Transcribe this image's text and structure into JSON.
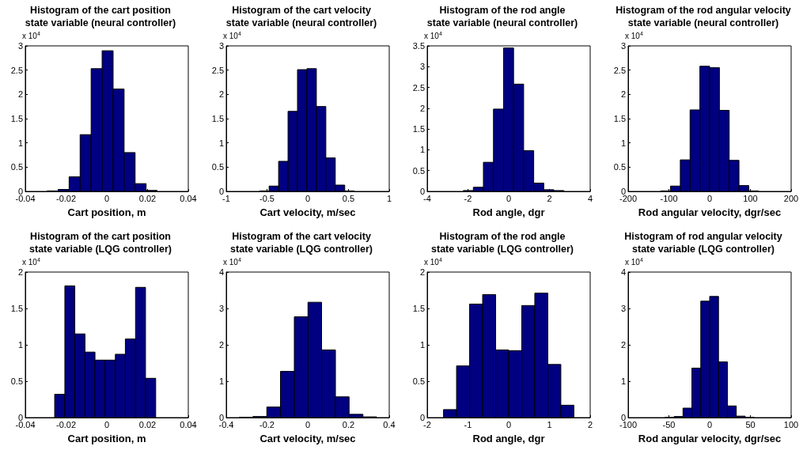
{
  "chart_data": [
    {
      "type": "histogram",
      "title": "Histogram of the cart position\nstate variable (neural controller)",
      "xlabel": "Cart position, m",
      "ylabel": "x 10$^{4}$",
      "color": "#000080",
      "bins": [
        -0.0293,
        -0.0239,
        -0.0185,
        -0.0131,
        -0.0077,
        -0.0023,
        0.0031,
        0.0085,
        0.0139,
        0.0193,
        0.0247
      ],
      "values": [
        0.01,
        0.04,
        0.3,
        1.17,
        2.53,
        2.9,
        2.11,
        0.8,
        0.16,
        0.02
      ],
      "xlim": [
        -0.04,
        0.04
      ],
      "xticks": [
        -0.04,
        -0.02,
        0,
        0.02,
        0.04
      ],
      "ylim": [
        0,
        3
      ],
      "yticks": [
        0,
        0.5,
        1,
        1.5,
        2,
        2.5,
        3
      ]
    },
    {
      "type": "histogram",
      "title": "Histogram of the cart velocity\nstate variable (neural controller)",
      "xlabel": "Cart velocity, m/sec",
      "ylabel": "x 10$^{4}$",
      "color": "#000080",
      "bins": [
        -0.59,
        -0.474,
        -0.358,
        -0.242,
        -0.126,
        -0.01,
        0.106,
        0.222,
        0.338,
        0.454,
        0.57
      ],
      "values": [
        0.01,
        0.11,
        0.62,
        1.65,
        2.51,
        2.53,
        1.75,
        0.69,
        0.13,
        0.01
      ],
      "xlim": [
        -1,
        1
      ],
      "xticks": [
        -1,
        -0.5,
        0,
        0.5,
        1
      ],
      "ylim": [
        0,
        3
      ],
      "yticks": [
        0,
        0.5,
        1,
        1.5,
        2,
        2.5,
        3
      ]
    },
    {
      "type": "histogram",
      "title": "Histogram of the rod angle\nstate variable (neural controller)",
      "xlabel": "Rod angle, dgr",
      "ylabel": "x 10$^{4}$",
      "color": "#000080",
      "bins": [
        -2.23,
        -1.736,
        -1.242,
        -0.748,
        -0.254,
        0.24,
        0.734,
        1.228,
        1.722,
        2.216,
        2.71
      ],
      "values": [
        0.02,
        0.1,
        0.7,
        1.98,
        3.45,
        2.58,
        0.98,
        0.2,
        0.04,
        0.02
      ],
      "xlim": [
        -4,
        4
      ],
      "xticks": [
        -4,
        -2,
        0,
        2,
        4
      ],
      "ylim": [
        0,
        3.5
      ],
      "yticks": [
        0,
        0.5,
        1,
        1.5,
        2,
        2.5,
        3,
        3.5
      ]
    },
    {
      "type": "histogram",
      "title": "Histogram of the rod angular velocity\nstate variable (neural controller)",
      "xlabel": "Rod angular velocity, dgr/sec",
      "ylabel": "x 10$^{4}$",
      "color": "#000080",
      "bins": [
        -120,
        -96,
        -72,
        -48,
        -24,
        0,
        24,
        48,
        72,
        96,
        120
      ],
      "values": [
        0.01,
        0.11,
        0.65,
        1.68,
        2.58,
        2.55,
        1.67,
        0.64,
        0.12,
        0.01
      ],
      "xlim": [
        -200,
        200
      ],
      "xticks": [
        -200,
        -100,
        0,
        100,
        200
      ],
      "ylim": [
        0,
        3
      ],
      "yticks": [
        0,
        0.5,
        1,
        1.5,
        2,
        2.5,
        3
      ]
    },
    {
      "type": "histogram",
      "title": "Histogram of the cart position\nstate variable (LQG controller)",
      "xlabel": "Cart position, m",
      "ylabel": "x 10$^{4}$",
      "color": "#000080",
      "bins": [
        -0.0256,
        -0.0206,
        -0.0157,
        -0.0107,
        -0.0058,
        -0.0008,
        0.0042,
        0.0091,
        0.0141,
        0.019,
        0.024
      ],
      "values": [
        0.32,
        1.81,
        1.15,
        0.9,
        0.79,
        0.79,
        0.87,
        1.08,
        1.79,
        0.54
      ],
      "xlim": [
        -0.04,
        0.04
      ],
      "xticks": [
        -0.04,
        -0.02,
        0,
        0.02,
        0.04
      ],
      "ylim": [
        0,
        2
      ],
      "yticks": [
        0,
        0.5,
        1,
        1.5,
        2
      ]
    },
    {
      "type": "histogram",
      "title": "Histogram of the cart velocity\nstate variable (LQG controller)",
      "xlabel": "Cart velocity, m/sec",
      "ylabel": "x 10$^{4}$",
      "color": "#000080",
      "bins": [
        -0.336,
        -0.269,
        -0.201,
        -0.134,
        -0.066,
        0.001,
        0.068,
        0.136,
        0.203,
        0.271,
        0.338
      ],
      "values": [
        0.01,
        0.03,
        0.29,
        1.27,
        2.77,
        3.17,
        1.86,
        0.57,
        0.09,
        0.02
      ],
      "xlim": [
        -0.4,
        0.4
      ],
      "xticks": [
        -0.4,
        -0.2,
        0,
        0.2,
        0.4
      ],
      "ylim": [
        0,
        4
      ],
      "yticks": [
        0,
        1,
        2,
        3,
        4
      ]
    },
    {
      "type": "histogram",
      "title": "Histogram of the rod angle\nstate variable (LQG controller)",
      "xlabel": "Rod angle, dgr",
      "ylabel": "x 10$^{4}$",
      "color": "#000080",
      "bins": [
        -1.6,
        -1.28,
        -0.96,
        -0.64,
        -0.32,
        0,
        0.32,
        0.64,
        0.96,
        1.28,
        1.6
      ],
      "values": [
        0.11,
        0.71,
        1.56,
        1.69,
        0.93,
        0.92,
        1.54,
        1.71,
        0.73,
        0.17
      ],
      "xlim": [
        -2,
        2
      ],
      "xticks": [
        -2,
        -1,
        0,
        1,
        2
      ],
      "ylim": [
        0,
        2
      ],
      "yticks": [
        0,
        0.5,
        1,
        1.5,
        2
      ]
    },
    {
      "type": "histogram",
      "title": "Histogram of rod angular velocity\nstate variable (LQG controller)",
      "xlabel": "Rod angular velocity, dgr/sec",
      "ylabel": "x 10$^{4}$",
      "color": "#000080",
      "bins": [
        -54.5,
        -43.6,
        -32.7,
        -21.8,
        -10.9,
        0,
        10.9,
        21.8,
        32.7,
        43.6,
        54.5
      ],
      "values": [
        0.01,
        0.03,
        0.26,
        1.36,
        3.2,
        3.33,
        1.53,
        0.32,
        0.04,
        0.01
      ],
      "xlim": [
        -100,
        100
      ],
      "xticks": [
        -100,
        -50,
        0,
        50,
        100
      ],
      "ylim": [
        0,
        4
      ],
      "yticks": [
        0,
        1,
        2,
        3,
        4
      ]
    }
  ]
}
